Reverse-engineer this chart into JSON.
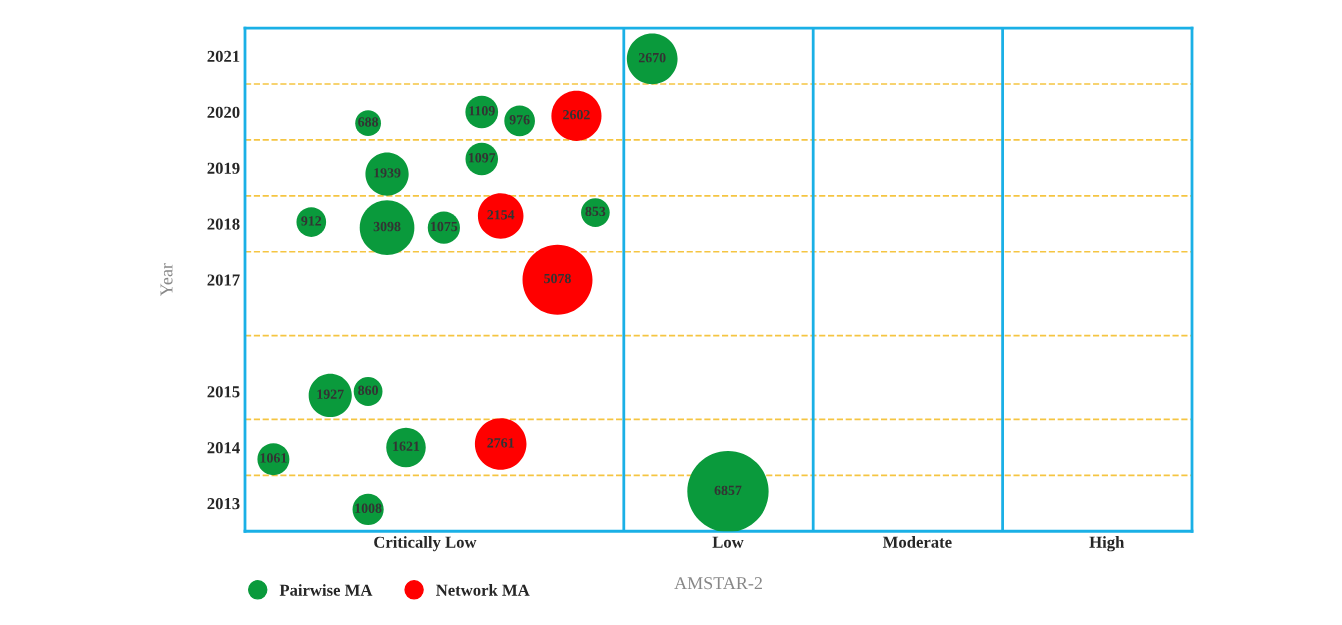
{
  "chart_data": {
    "type": "bubble",
    "xlabel": "AMSTAR-2",
    "ylabel": "Year",
    "categories": [
      null,
      null,
      null,
      null,
      null,
      null,
      null,
      null,
      null,
      "Critically Low",
      null,
      null,
      null,
      null,
      null,
      null,
      null,
      null,
      null,
      null,
      null,
      null,
      null,
      null,
      null,
      "Low",
      null,
      null,
      null,
      null,
      null,
      null,
      null,
      null,
      null,
      "Moderate",
      null,
      null,
      null,
      null,
      null,
      null,
      null,
      null,
      null,
      "High",
      null,
      null,
      null,
      null
    ],
    "ylim": [
      2012.5,
      2021.5
    ],
    "yticks": [
      2013,
      2014,
      2015,
      2017,
      2018,
      2019,
      2020,
      2021
    ],
    "series": [
      {
        "name": "Pairwise MA",
        "color": "#0a9a3c",
        "values": [
          null,
          2013.79,
          null,
          2018.03,
          2014.93,
          null,
          2019.8,
          2018.89,
          2014.0,
          null,
          2017.93,
          null,
          2020.0,
          null,
          2019.84,
          null,
          null,
          null,
          2018.2,
          null,
          null,
          2020.95,
          null,
          null,
          null,
          2013.21,
          null,
          null,
          null,
          null,
          null,
          null,
          null,
          null,
          null,
          null,
          null,
          null,
          null,
          null,
          null,
          null,
          null,
          null,
          null,
          null,
          null,
          null,
          null,
          null
        ],
        "sizes": [
          null,
          1061,
          null,
          912,
          1927,
          null,
          688,
          1939,
          1621,
          null,
          1075,
          null,
          1109,
          null,
          976,
          null,
          null,
          null,
          853,
          null,
          null,
          2670,
          null,
          null,
          null,
          6857,
          null,
          null,
          null,
          null,
          null,
          null,
          null,
          null,
          null,
          null,
          null,
          null,
          null,
          null,
          null,
          null,
          null,
          null,
          null,
          null,
          null,
          null,
          null,
          null
        ],
        "value_labels": [
          null,
          "1061",
          null,
          "912",
          "1927",
          null,
          "688",
          "1939",
          "1621",
          null,
          "1075",
          null,
          "1109",
          null,
          "976",
          null,
          null,
          null,
          "853",
          null,
          null,
          "2670",
          null,
          null,
          null,
          "6857",
          null,
          null,
          null,
          null,
          null,
          null,
          null,
          null,
          null,
          null,
          null,
          null,
          null,
          null,
          null,
          null,
          null,
          null,
          null,
          null,
          null,
          null,
          null,
          null
        ]
      },
      {
        "color": "#0a9a3c",
        "values": [
          null,
          null,
          null,
          null,
          null,
          null,
          2012.89,
          2017.93,
          null,
          null,
          null,
          null,
          2019.16,
          null,
          null,
          null,
          null,
          null,
          null,
          null,
          null,
          null,
          null,
          null,
          null,
          null,
          null,
          null,
          null,
          null,
          null,
          null,
          null,
          null,
          null,
          null,
          null,
          null,
          null,
          null,
          null,
          null,
          null,
          null,
          null,
          null,
          null,
          null,
          null,
          null
        ],
        "sizes": [
          null,
          null,
          null,
          null,
          null,
          null,
          1008,
          3098,
          null,
          null,
          null,
          null,
          1097,
          null,
          null,
          null,
          null,
          null,
          null,
          null,
          null,
          null,
          null,
          null,
          null,
          null,
          null,
          null,
          null,
          null,
          null,
          null,
          null,
          null,
          null,
          null,
          null,
          null,
          null,
          null,
          null,
          null,
          null,
          null,
          null,
          null,
          null,
          null,
          null,
          null
        ],
        "value_labels": [
          null,
          null,
          null,
          null,
          null,
          null,
          "1008",
          "3098",
          null,
          null,
          null,
          null,
          "1097",
          null,
          null,
          null,
          null,
          null,
          null,
          null,
          null,
          null,
          null,
          null,
          null,
          null,
          null,
          null,
          null,
          null,
          null,
          null,
          null,
          null,
          null,
          null,
          null,
          null,
          null,
          null,
          null,
          null,
          null,
          null,
          null,
          null,
          null,
          null,
          null,
          null
        ]
      },
      {
        "color": "#0a9a3c",
        "values": [
          null,
          null,
          null,
          null,
          null,
          null,
          2015.0,
          null,
          null,
          null,
          null,
          null,
          null,
          null,
          null,
          null,
          null,
          null,
          null,
          null,
          null,
          null,
          null,
          null,
          null,
          null,
          null,
          null,
          null,
          null,
          null,
          null,
          null,
          null,
          null,
          null,
          null,
          null,
          null,
          null,
          null,
          null,
          null,
          null,
          null,
          null,
          null,
          null,
          null,
          null
        ],
        "sizes": [
          null,
          null,
          null,
          null,
          null,
          null,
          860,
          null,
          null,
          null,
          null,
          null,
          null,
          null,
          null,
          null,
          null,
          null,
          null,
          null,
          null,
          null,
          null,
          null,
          null,
          null,
          null,
          null,
          null,
          null,
          null,
          null,
          null,
          null,
          null,
          null,
          null,
          null,
          null,
          null,
          null,
          null,
          null,
          null,
          null,
          null,
          null,
          null,
          null,
          null
        ],
        "value_labels": [
          null,
          null,
          null,
          null,
          null,
          null,
          "860",
          null,
          null,
          null,
          null,
          null,
          null,
          null,
          null,
          null,
          null,
          null,
          null,
          null,
          null,
          null,
          null,
          null,
          null,
          null,
          null,
          null,
          null,
          null,
          null,
          null,
          null,
          null,
          null,
          null,
          null,
          null,
          null,
          null,
          null,
          null,
          null,
          null,
          null,
          null,
          null,
          null,
          null,
          null
        ]
      },
      {
        "name": "Network MA",
        "color": "#ff0000",
        "values": [
          null,
          null,
          null,
          null,
          null,
          null,
          null,
          null,
          null,
          null,
          null,
          null,
          null,
          2018.14,
          null,
          null,
          2017.0,
          2019.93,
          null,
          null,
          null,
          null,
          null,
          null,
          null,
          null,
          null,
          null,
          null,
          null,
          null,
          null,
          null,
          null,
          null,
          null,
          null,
          null,
          null,
          null,
          null,
          null,
          null,
          null,
          null,
          null,
          null,
          null,
          null,
          null
        ],
        "sizes": [
          null,
          null,
          null,
          null,
          null,
          null,
          null,
          null,
          null,
          null,
          null,
          null,
          null,
          2154,
          null,
          null,
          5078,
          2602,
          null,
          null,
          null,
          null,
          null,
          null,
          null,
          null,
          null,
          null,
          null,
          null,
          null,
          null,
          null,
          null,
          null,
          null,
          null,
          null,
          null,
          null,
          null,
          null,
          null,
          null,
          null,
          null,
          null,
          null,
          null,
          null
        ],
        "value_labels": [
          null,
          null,
          null,
          null,
          null,
          null,
          null,
          null,
          null,
          null,
          null,
          null,
          null,
          "2154",
          null,
          null,
          "5078",
          "2602",
          null,
          null,
          null,
          null,
          null,
          null,
          null,
          null,
          null,
          null,
          null,
          null,
          null,
          null,
          null,
          null,
          null,
          null,
          null,
          null,
          null,
          null,
          null,
          null,
          null,
          null,
          null,
          null,
          null,
          null,
          null,
          null
        ]
      },
      {
        "color": "#ff0000",
        "values": [
          null,
          null,
          null,
          null,
          null,
          null,
          null,
          null,
          null,
          null,
          null,
          null,
          null,
          2014.06,
          null,
          null,
          null,
          null,
          null,
          null,
          null,
          null,
          null,
          null,
          null,
          null,
          null,
          null,
          null,
          null,
          null,
          null,
          null,
          null,
          null,
          null,
          null,
          null,
          null,
          null,
          null,
          null,
          null,
          null,
          null,
          null,
          null,
          null,
          null,
          null
        ],
        "sizes": [
          null,
          null,
          null,
          null,
          null,
          null,
          null,
          null,
          null,
          null,
          null,
          null,
          null,
          2761,
          null,
          null,
          null,
          null,
          null,
          null,
          null,
          null,
          null,
          null,
          null,
          null,
          null,
          null,
          null,
          null,
          null,
          null,
          null,
          null,
          null,
          null,
          null,
          null,
          null,
          null,
          null,
          null,
          null,
          null,
          null,
          null,
          null,
          null,
          null,
          null
        ],
        "value_labels": [
          null,
          null,
          null,
          null,
          null,
          null,
          null,
          null,
          null,
          null,
          null,
          null,
          null,
          "2761",
          null,
          null,
          null,
          null,
          null,
          null,
          null,
          null,
          null,
          null,
          null,
          null,
          null,
          null,
          null,
          null,
          null,
          null,
          null,
          null,
          null,
          null,
          null,
          null,
          null,
          null,
          null,
          null,
          null,
          null,
          null,
          null,
          null,
          null,
          null,
          null
        ]
      }
    ],
    "ref_lines": [
      {
        "axis": "y",
        "value": 2013.5,
        "color": "#f5c542",
        "line_style": "dashed"
      },
      {
        "axis": "y",
        "value": 2014.5,
        "color": "#f5c542",
        "line_style": "dashed"
      },
      {
        "axis": "y",
        "value": 2016,
        "color": "#f5c542",
        "line_style": "dashed"
      },
      {
        "axis": "y",
        "value": 2017.5,
        "color": "#f5c542",
        "line_style": "dashed"
      },
      {
        "axis": "y",
        "value": 2018.5,
        "color": "#f5c542",
        "line_style": "dashed"
      },
      {
        "axis": "y",
        "value": 2019.5,
        "color": "#f5c542",
        "line_style": "dashed"
      },
      {
        "axis": "y",
        "value": 2020.5,
        "color": "#f5c542",
        "line_style": "dashed"
      }
    ],
    "grid": false,
    "legend": "bottom left"
  }
}
